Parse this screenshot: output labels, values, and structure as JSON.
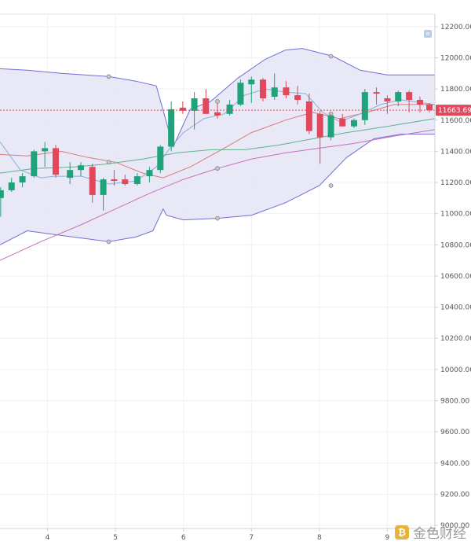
{
  "chart_data": {
    "type": "candlestick",
    "y_axis": {
      "ticks": [
        12200,
        12000,
        11800,
        11600,
        11400,
        11200,
        11000,
        10800,
        10600,
        10400,
        10200,
        10000,
        9800,
        9600,
        9400,
        9200,
        9000
      ],
      "tick_labels": [
        "12200.00",
        "12000.00",
        "11800.00",
        "11600.00",
        "11400.00",
        "11200.00",
        "11000.00",
        "10800.00",
        "10600.00",
        "10400.00",
        "10200.00",
        "10000.00",
        "9800.00",
        "9600.00",
        "9400.00",
        "9200.00",
        "9000.00"
      ],
      "range": [
        8980,
        12280
      ],
      "position": "right"
    },
    "x_axis": {
      "range": [
        3.3,
        9.7
      ],
      "ticks": [
        4,
        5,
        6,
        7,
        8,
        9
      ],
      "tick_labels": [
        "4",
        "5",
        "6",
        "7",
        "8",
        "9"
      ]
    },
    "current_price": 11663.69,
    "current_price_label": "11663.69",
    "candles": [
      {
        "x": 3.31,
        "o": 11100,
        "h": 11170,
        "l": 10980,
        "c": 11150
      },
      {
        "x": 3.47,
        "o": 11150,
        "h": 11230,
        "l": 11140,
        "c": 11200
      },
      {
        "x": 3.63,
        "o": 11200,
        "h": 11260,
        "l": 11170,
        "c": 11240
      },
      {
        "x": 3.8,
        "o": 11240,
        "h": 11410,
        "l": 11230,
        "c": 11400
      },
      {
        "x": 3.96,
        "o": 11400,
        "h": 11460,
        "l": 11300,
        "c": 11420
      },
      {
        "x": 4.12,
        "o": 11420,
        "h": 11440,
        "l": 11230,
        "c": 11250
      },
      {
        "x": 4.33,
        "o": 11230,
        "h": 11330,
        "l": 11190,
        "c": 11280
      },
      {
        "x": 4.49,
        "o": 11280,
        "h": 11330,
        "l": 11240,
        "c": 11310
      },
      {
        "x": 4.66,
        "o": 11300,
        "h": 11320,
        "l": 11070,
        "c": 11120
      },
      {
        "x": 4.82,
        "o": 11120,
        "h": 11230,
        "l": 11020,
        "c": 11220
      },
      {
        "x": 4.98,
        "o": 11220,
        "h": 11280,
        "l": 11180,
        "c": 11210
      },
      {
        "x": 5.14,
        "o": 11220,
        "h": 11250,
        "l": 11180,
        "c": 11190
      },
      {
        "x": 5.32,
        "o": 11190,
        "h": 11260,
        "l": 11180,
        "c": 11240
      },
      {
        "x": 5.5,
        "o": 11240,
        "h": 11300,
        "l": 11200,
        "c": 11280
      },
      {
        "x": 5.66,
        "o": 11280,
        "h": 11440,
        "l": 11260,
        "c": 11430
      },
      {
        "x": 5.82,
        "o": 11430,
        "h": 11720,
        "l": 11400,
        "c": 11670
      },
      {
        "x": 5.99,
        "o": 11680,
        "h": 11720,
        "l": 11640,
        "c": 11660
      },
      {
        "x": 6.16,
        "o": 11660,
        "h": 11780,
        "l": 11540,
        "c": 11740
      },
      {
        "x": 6.33,
        "o": 11740,
        "h": 11800,
        "l": 11640,
        "c": 11640
      },
      {
        "x": 6.5,
        "o": 11650,
        "h": 11710,
        "l": 11610,
        "c": 11630
      },
      {
        "x": 6.68,
        "o": 11640,
        "h": 11730,
        "l": 11630,
        "c": 11700
      },
      {
        "x": 6.84,
        "o": 11700,
        "h": 11860,
        "l": 11690,
        "c": 11840
      },
      {
        "x": 7.0,
        "o": 11830,
        "h": 11880,
        "l": 11710,
        "c": 11860
      },
      {
        "x": 7.17,
        "o": 11860,
        "h": 11870,
        "l": 11720,
        "c": 11740
      },
      {
        "x": 7.34,
        "o": 11750,
        "h": 11900,
        "l": 11730,
        "c": 11810
      },
      {
        "x": 7.51,
        "o": 11810,
        "h": 11850,
        "l": 11740,
        "c": 11760
      },
      {
        "x": 7.68,
        "o": 11760,
        "h": 11820,
        "l": 11700,
        "c": 11730
      },
      {
        "x": 7.85,
        "o": 11720,
        "h": 11770,
        "l": 11510,
        "c": 11530
      },
      {
        "x": 8.01,
        "o": 11640,
        "h": 11660,
        "l": 11320,
        "c": 11490
      },
      {
        "x": 8.17,
        "o": 11490,
        "h": 11640,
        "l": 11470,
        "c": 11630
      },
      {
        "x": 8.34,
        "o": 11610,
        "h": 11640,
        "l": 11560,
        "c": 11560
      },
      {
        "x": 8.51,
        "o": 11560,
        "h": 11610,
        "l": 11550,
        "c": 11600
      },
      {
        "x": 8.67,
        "o": 11600,
        "h": 11800,
        "l": 11570,
        "c": 11780
      },
      {
        "x": 8.84,
        "o": 11780,
        "h": 11810,
        "l": 11700,
        "c": 11770
      },
      {
        "x": 9.0,
        "o": 11740,
        "h": 11760,
        "l": 11640,
        "c": 11720
      },
      {
        "x": 9.16,
        "o": 11720,
        "h": 11790,
        "l": 11690,
        "c": 11780
      },
      {
        "x": 9.32,
        "o": 11780,
        "h": 11790,
        "l": 11650,
        "c": 11730
      },
      {
        "x": 9.48,
        "o": 11730,
        "h": 11750,
        "l": 11650,
        "c": 11700
      },
      {
        "x": 9.62,
        "o": 11700,
        "h": 11710,
        "l": 11650,
        "c": 11664
      }
    ],
    "bollinger": {
      "upper": [
        [
          3.3,
          11930
        ],
        [
          3.7,
          11920
        ],
        [
          4.2,
          11900
        ],
        [
          4.9,
          11880
        ],
        [
          5.3,
          11850
        ],
        [
          5.6,
          11820
        ],
        [
          5.85,
          11430
        ],
        [
          6.1,
          11670
        ],
        [
          6.4,
          11720
        ],
        [
          6.8,
          11870
        ],
        [
          7.2,
          11990
        ],
        [
          7.5,
          12050
        ],
        [
          7.75,
          12060
        ],
        [
          8.2,
          12010
        ],
        [
          8.6,
          11920
        ],
        [
          9.0,
          11890
        ],
        [
          9.7,
          11890
        ]
      ],
      "lower": [
        [
          3.3,
          10800
        ],
        [
          3.7,
          10890
        ],
        [
          4.2,
          10860
        ],
        [
          4.9,
          10820
        ],
        [
          5.3,
          10850
        ],
        [
          5.55,
          10890
        ],
        [
          5.7,
          11030
        ],
        [
          5.75,
          10990
        ],
        [
          6.0,
          10960
        ],
        [
          6.5,
          10970
        ],
        [
          7.0,
          10990
        ],
        [
          7.5,
          11070
        ],
        [
          8.0,
          11180
        ],
        [
          8.4,
          11360
        ],
        [
          8.8,
          11480
        ],
        [
          9.2,
          11510
        ],
        [
          9.7,
          11510
        ]
      ]
    },
    "bollinger_mid": [
      [
        3.3,
        11380
      ],
      [
        3.7,
        11370
      ],
      [
        4.2,
        11400
      ],
      [
        4.6,
        11360
      ],
      [
        5.0,
        11330
      ],
      [
        5.4,
        11260
      ],
      [
        5.7,
        11230
      ],
      [
        6.1,
        11300
      ],
      [
        6.6,
        11420
      ],
      [
        7.0,
        11520
      ],
      [
        7.5,
        11600
      ],
      [
        7.9,
        11650
      ],
      [
        8.3,
        11610
      ],
      [
        8.7,
        11650
      ],
      [
        9.1,
        11700
      ],
      [
        9.7,
        11700
      ]
    ],
    "ma_lines": [
      {
        "color": "#8aaed8",
        "points": [
          [
            3.3,
            11460
          ],
          [
            3.6,
            11280
          ],
          [
            3.9,
            11230
          ],
          [
            4.1,
            11240
          ],
          [
            4.5,
            11240
          ],
          [
            4.9,
            11190
          ],
          [
            5.3,
            11210
          ],
          [
            5.6,
            11300
          ],
          [
            5.8,
            11420
          ],
          [
            6.0,
            11520
          ],
          [
            6.3,
            11610
          ],
          [
            6.6,
            11640
          ],
          [
            6.9,
            11760
          ],
          [
            7.2,
            11800
          ],
          [
            7.5,
            11780
          ],
          [
            7.8,
            11770
          ],
          [
            8.05,
            11650
          ],
          [
            8.3,
            11590
          ],
          [
            8.6,
            11640
          ],
          [
            8.9,
            11700
          ],
          [
            9.2,
            11730
          ],
          [
            9.7,
            11700
          ]
        ]
      },
      {
        "color": "#5fb38c",
        "points": [
          [
            3.3,
            11260
          ],
          [
            3.8,
            11290
          ],
          [
            4.4,
            11300
          ],
          [
            4.9,
            11320
          ],
          [
            5.4,
            11350
          ],
          [
            5.9,
            11390
          ],
          [
            6.4,
            11410
          ],
          [
            6.9,
            11410
          ],
          [
            7.4,
            11440
          ],
          [
            7.9,
            11480
          ],
          [
            8.4,
            11520
          ],
          [
            9.0,
            11560
          ],
          [
            9.7,
            11610
          ]
        ]
      },
      {
        "color": "#c86fbd",
        "points": [
          [
            3.3,
            10700
          ],
          [
            3.9,
            10820
          ],
          [
            4.5,
            10930
          ],
          [
            5.0,
            11030
          ],
          [
            5.5,
            11130
          ],
          [
            6.0,
            11220
          ],
          [
            6.5,
            11290
          ],
          [
            7.0,
            11350
          ],
          [
            7.5,
            11390
          ],
          [
            8.0,
            11420
          ],
          [
            8.5,
            11450
          ],
          [
            9.0,
            11490
          ],
          [
            9.7,
            11540
          ]
        ]
      }
    ],
    "grid": true,
    "legend": "none"
  }
}
